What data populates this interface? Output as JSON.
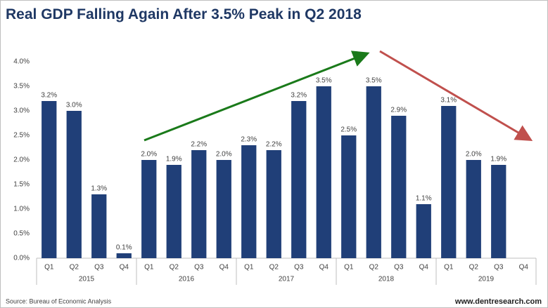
{
  "chart_data": {
    "type": "bar",
    "title": "Real GDP Falling Again After 3.5% Peak in Q2 2018",
    "categories": [
      "Q1",
      "Q2",
      "Q3",
      "Q4",
      "Q1",
      "Q2",
      "Q3",
      "Q4",
      "Q1",
      "Q2",
      "Q3",
      "Q4",
      "Q1",
      "Q2",
      "Q3",
      "Q4",
      "Q1",
      "Q2",
      "Q3",
      "Q4"
    ],
    "groups": [
      "2015",
      "2016",
      "2017",
      "2018",
      "2019"
    ],
    "values": [
      3.2,
      3,
      1.3,
      0.1,
      2,
      1.9,
      2.2,
      2,
      2.3,
      2.2,
      3.2,
      3.5,
      2.5,
      3.5,
      2.9,
      1.1,
      3.1,
      2,
      1.9,
      null
    ],
    "value_labels": [
      "3.2%",
      "3.0%",
      "1.3%",
      "0.1%",
      "2.0%",
      "1.9%",
      "2.2%",
      "2.0%",
      "2.3%",
      "2.2%",
      "3.2%",
      "3.5%",
      "2.5%",
      "3.5%",
      "2.9%",
      "1.1%",
      "3.1%",
      "2.0%",
      "1.9%",
      null
    ],
    "color": "#203f78",
    "ylim": [
      0,
      4
    ],
    "yticks": [
      {
        "value": 0,
        "label": "0.0%"
      },
      {
        "value": 0.5,
        "label": "0.5%"
      },
      {
        "value": 1,
        "label": "1.0%"
      },
      {
        "value": 1.5,
        "label": "1.5%"
      },
      {
        "value": 2,
        "label": "2.0%"
      },
      {
        "value": 2.5,
        "label": "2.5%"
      },
      {
        "value": 3,
        "label": "3.0%"
      },
      {
        "value": 3.5,
        "label": "3.5%"
      },
      {
        "value": 4,
        "label": "4.0%"
      }
    ],
    "grid": false,
    "source": "Source: Bureau of Economic Analysis",
    "website": "www.dentresearch.com"
  }
}
